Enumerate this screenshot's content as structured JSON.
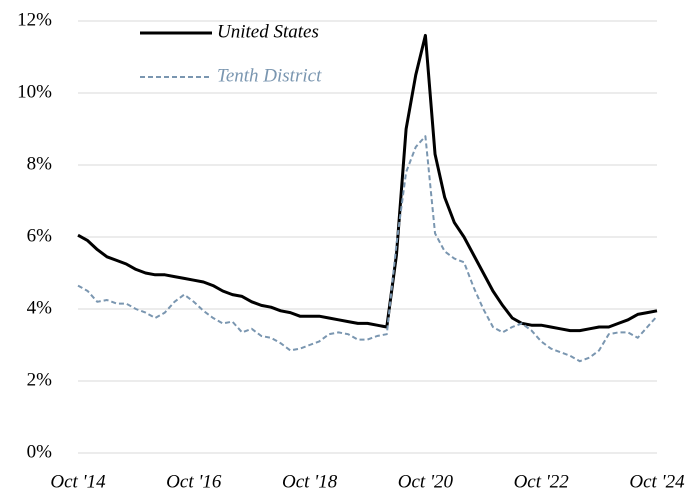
{
  "chart_data": {
    "type": "line",
    "categories": [
      "Oct '14",
      null,
      null,
      null,
      null,
      null,
      null,
      null,
      null,
      null,
      null,
      null,
      "Oct '16",
      null,
      null,
      null,
      null,
      null,
      null,
      null,
      null,
      null,
      null,
      null,
      "Oct '18",
      null,
      null,
      null,
      null,
      null,
      null,
      null,
      null,
      null,
      null,
      null,
      "Oct '20",
      null,
      null,
      null,
      null,
      null,
      null,
      null,
      null,
      null,
      null,
      null,
      "Oct '22",
      null,
      null,
      null,
      null,
      null,
      null,
      null,
      null,
      null,
      null,
      null,
      "Oct '24"
    ],
    "series": [
      {
        "name": "United States",
        "color": "#000000",
        "dash": false,
        "values": [
          6.05,
          5.9,
          5.65,
          5.45,
          5.35,
          5.25,
          5.1,
          5.0,
          4.95,
          4.95,
          4.9,
          4.85,
          4.8,
          4.75,
          4.65,
          4.5,
          4.4,
          4.35,
          4.2,
          4.1,
          4.05,
          3.95,
          3.9,
          3.8,
          3.8,
          3.8,
          3.75,
          3.7,
          3.65,
          3.6,
          3.6,
          3.55,
          3.5,
          5.5,
          9.0,
          10.5,
          11.6,
          8.3,
          7.1,
          6.4,
          6.0,
          5.5,
          5.0,
          4.5,
          4.1,
          3.75,
          3.6,
          3.55,
          3.55,
          3.5,
          3.45,
          3.4,
          3.4,
          3.45,
          3.5,
          3.5,
          3.6,
          3.7,
          3.85,
          3.9,
          3.95
        ]
      },
      {
        "name": "Tenth District",
        "color": "#7a96b0",
        "dash": true,
        "values": [
          4.65,
          4.5,
          4.2,
          4.25,
          4.15,
          4.15,
          4.0,
          3.9,
          3.75,
          3.9,
          4.2,
          4.4,
          4.2,
          3.95,
          3.75,
          3.6,
          3.65,
          3.35,
          3.45,
          3.25,
          3.2,
          3.05,
          2.85,
          2.9,
          3.0,
          3.1,
          3.3,
          3.35,
          3.3,
          3.15,
          3.15,
          3.25,
          3.3,
          5.8,
          7.8,
          8.5,
          8.8,
          6.1,
          5.6,
          5.4,
          5.3,
          4.6,
          4.0,
          3.5,
          3.35,
          3.5,
          3.6,
          3.4,
          3.1,
          2.9,
          2.8,
          2.7,
          2.55,
          2.65,
          2.85,
          3.3,
          3.35,
          3.35,
          3.2,
          3.5,
          3.8
        ]
      }
    ],
    "ylim": [
      0,
      12
    ],
    "yticks": [
      {
        "value": 0,
        "label": "0%"
      },
      {
        "value": 2,
        "label": "2%"
      },
      {
        "value": 4,
        "label": "4%"
      },
      {
        "value": 6,
        "label": "6%"
      },
      {
        "value": 8,
        "label": "8%"
      },
      {
        "value": 10,
        "label": "10%"
      },
      {
        "value": 12,
        "label": "12%"
      }
    ],
    "grid": true
  }
}
